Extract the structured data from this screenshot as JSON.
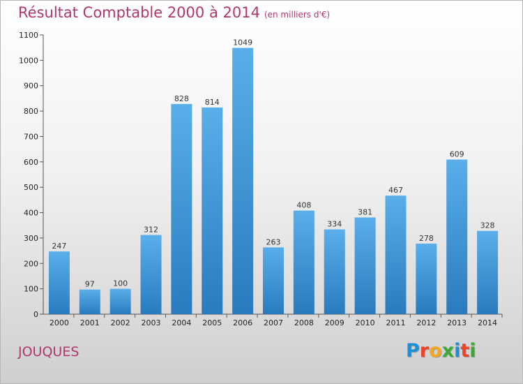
{
  "header": {
    "title": "Résultat Comptable 2000 à 2014",
    "unit": "(en milliers d'€)"
  },
  "footer": {
    "place": "JOUQUES",
    "logo_text": "Proxiti",
    "logo_letters": [
      {
        "ch": "P",
        "color": "#1c8fd6"
      },
      {
        "ch": "r",
        "color": "#e8442a"
      },
      {
        "ch": "o",
        "color": "#f5a623"
      },
      {
        "ch": "x",
        "color": "#3aa935"
      },
      {
        "ch": "i",
        "color": "#1c8fd6"
      },
      {
        "ch": "t",
        "color": "#e8442a"
      },
      {
        "ch": "i",
        "color": "#3aa935"
      }
    ]
  },
  "colors": {
    "bar_top": "#5aaeea",
    "bar_bottom": "#2a7bbd",
    "title": "#b0376b"
  },
  "chart_data": {
    "type": "bar",
    "title": "Résultat Comptable 2000 à 2014",
    "subtitle": "(en milliers d'€)",
    "xlabel": "",
    "ylabel": "",
    "ylim": [
      0,
      1100
    ],
    "yticks": [
      0,
      100,
      200,
      300,
      400,
      500,
      600,
      700,
      800,
      900,
      1000,
      1100
    ],
    "grid": false,
    "categories": [
      "2000",
      "2001",
      "2002",
      "2003",
      "2004",
      "2005",
      "2006",
      "2007",
      "2008",
      "2009",
      "2010",
      "2011",
      "2012",
      "2013",
      "2014"
    ],
    "values": [
      247,
      97,
      100,
      312,
      828,
      814,
      1049,
      263,
      408,
      334,
      381,
      467,
      278,
      609,
      328
    ]
  }
}
